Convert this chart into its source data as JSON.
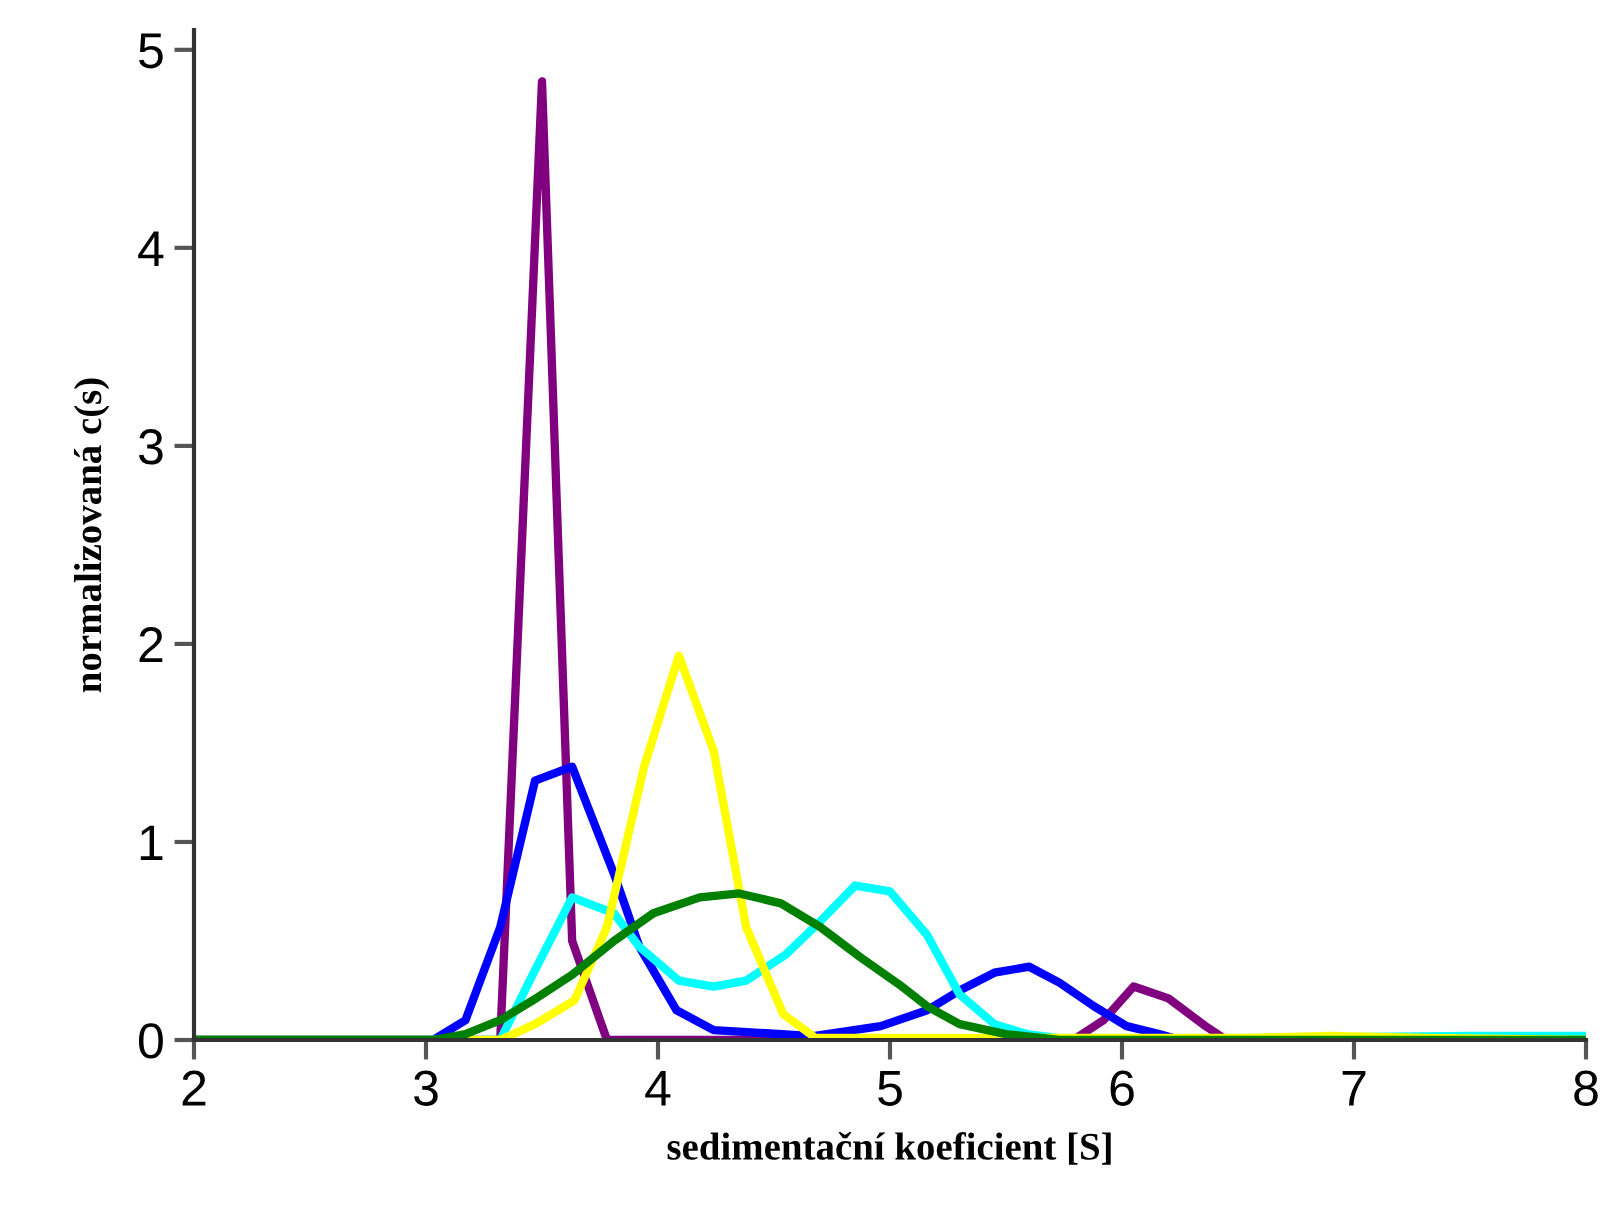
{
  "chart_data": {
    "type": "line",
    "xlabel": "sedimentační koeficient [S]",
    "ylabel": "normalizovaná c(s)",
    "xlim": [
      2,
      8
    ],
    "ylim": [
      0,
      5.1
    ],
    "xticks": [
      2,
      3,
      4,
      5,
      6,
      7,
      8
    ],
    "yticks": [
      0,
      1,
      2,
      3,
      4,
      5
    ],
    "grid": false,
    "legend": false,
    "marker": "none",
    "line_style": "solid",
    "series": [
      {
        "color": "#800080",
        "x": [
          2,
          3.32,
          3.5,
          3.63,
          3.78,
          5.79,
          5.92,
          6.05,
          6.2,
          6.36,
          6.45,
          8
        ],
        "values": [
          0,
          0,
          4.84,
          0.5,
          0,
          0,
          0.1,
          0.27,
          0.21,
          0.07,
          0,
          0
        ]
      },
      {
        "color": "#0000ff",
        "x": [
          2,
          3.03,
          3.17,
          3.32,
          3.47,
          3.63,
          3.81,
          3.92,
          4.08,
          4.24,
          4.67,
          4.96,
          5.16,
          5.3,
          5.45,
          5.6,
          5.73,
          5.88,
          6.02,
          6.16,
          6.25,
          8
        ],
        "values": [
          0,
          0,
          0.1,
          0.57,
          1.31,
          1.38,
          0.84,
          0.47,
          0.15,
          0.05,
          0.02,
          0.07,
          0.15,
          0.25,
          0.34,
          0.37,
          0.29,
          0.17,
          0.07,
          0.03,
          0,
          0
        ]
      },
      {
        "color": "#00ffff",
        "x": [
          2,
          3.32,
          3.46,
          3.63,
          3.81,
          3.92,
          4.09,
          4.24,
          4.38,
          4.55,
          4.7,
          4.85,
          5.0,
          5.16,
          5.3,
          5.45,
          5.59,
          5.79,
          7.5,
          8
        ],
        "values": [
          0,
          0,
          0.33,
          0.72,
          0.64,
          0.47,
          0.3,
          0.27,
          0.3,
          0.43,
          0.6,
          0.78,
          0.75,
          0.53,
          0.23,
          0.08,
          0.03,
          0,
          0.02,
          0.02
        ]
      },
      {
        "color": "#ffff00",
        "x": [
          2,
          3.32,
          3.47,
          3.64,
          3.78,
          3.94,
          4.09,
          4.24,
          4.38,
          4.54,
          4.68,
          6.5,
          6.9,
          7.3,
          8
        ],
        "values": [
          0,
          0,
          0.08,
          0.2,
          0.57,
          1.38,
          1.94,
          1.46,
          0.57,
          0.13,
          0.01,
          0.01,
          0.02,
          0.01,
          0
        ]
      },
      {
        "color": "#008000",
        "x": [
          2,
          3.03,
          3.17,
          3.32,
          3.46,
          3.63,
          3.81,
          3.98,
          4.18,
          4.35,
          4.53,
          4.7,
          4.87,
          5.04,
          5.16,
          5.3,
          5.5,
          5.73,
          8
        ],
        "values": [
          0,
          0,
          0.03,
          0.1,
          0.2,
          0.33,
          0.5,
          0.64,
          0.72,
          0.74,
          0.69,
          0.57,
          0.42,
          0.28,
          0.17,
          0.08,
          0.03,
          0,
          0
        ]
      }
    ]
  }
}
